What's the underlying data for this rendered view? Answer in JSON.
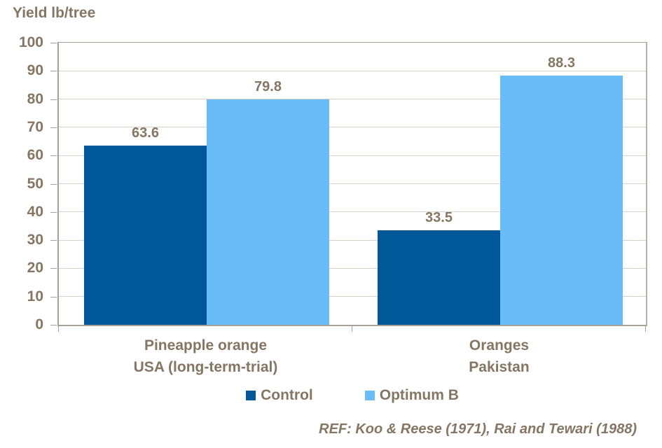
{
  "chart_data": {
    "type": "bar",
    "title": "Yield lb/tree",
    "ylabel": "Yield lb/tree",
    "categories": [
      {
        "line1": "Pineapple orange",
        "line2": "USA (long-term-trial)"
      },
      {
        "line1": "Oranges",
        "line2": "Pakistan"
      }
    ],
    "series": [
      {
        "name": "Control",
        "color": "#005898",
        "values": [
          63.6,
          33.5
        ]
      },
      {
        "name": "Optimum B",
        "color": "#69BCF8",
        "values": [
          79.8,
          88.3
        ]
      }
    ],
    "data_labels": true,
    "ylim": [
      0,
      100
    ],
    "yticks": [
      0,
      10,
      20,
      30,
      40,
      50,
      60,
      70,
      80,
      90,
      100
    ],
    "grid": true,
    "legend_position": "bottom"
  },
  "footnote": {
    "text": "REF: Koo & Reese (1971), Rai and Tewari (1988)"
  },
  "colors": {
    "text": "#857663",
    "axis": "#A5A099",
    "gridline": "#D7D3CC",
    "control": "#005898",
    "optimum_b": "#69BCF8",
    "background": "#FFFFFF"
  }
}
